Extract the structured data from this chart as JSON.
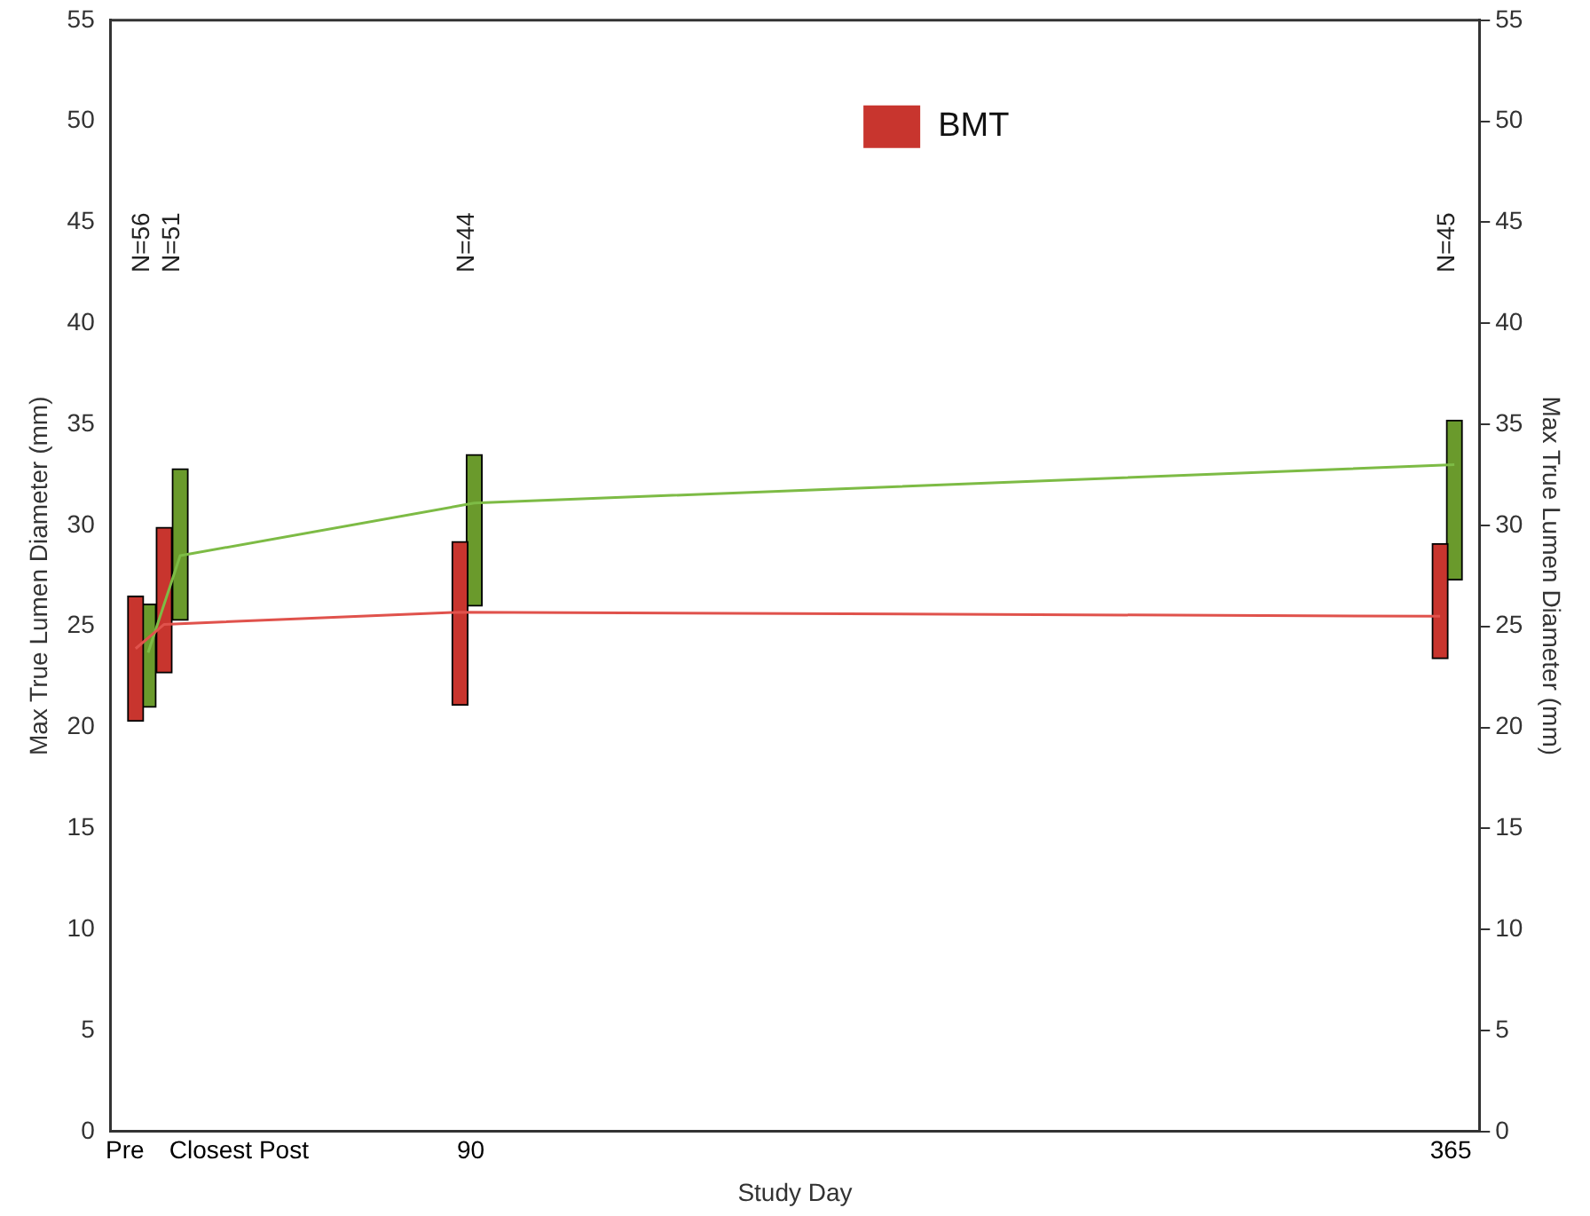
{
  "chart_data": {
    "type": "bar",
    "xlabel": "Study Day",
    "ylabel": "Max True Lumen Diameter (mm)",
    "y2label": "Max True Lumen Diameter (mm)",
    "xlim": [
      -11,
      373
    ],
    "xticks": [
      {
        "value": -7,
        "label": "Pre"
      },
      {
        "value": 25,
        "label": "Closest Post"
      },
      90,
      365
    ],
    "ylim": [
      0,
      55
    ],
    "yticks": [
      0,
      5,
      10,
      15,
      20,
      25,
      30,
      35,
      40,
      45,
      50,
      55
    ],
    "y2lim": [
      0,
      55
    ],
    "y2ticks": [
      0,
      5,
      10,
      15,
      20,
      25,
      30,
      35,
      40,
      45,
      50,
      55
    ],
    "grid": false,
    "legend": "top right",
    "marker": "none",
    "line_style": "solid",
    "series": [
      {
        "name": "BMT",
        "color": "#c8352e",
        "x": [
          -4,
          4,
          87,
          362
        ],
        "base": [
          20.3,
          22.7,
          21.1,
          23.4
        ],
        "values": [
          6.2,
          7.2,
          8.1,
          5.7
        ]
      },
      {
        "color": "#6a9a2c",
        "x": [
          -0.5,
          8.5,
          91,
          366
        ],
        "base": [
          21.0,
          25.3,
          26.0,
          27.3
        ],
        "values": [
          5.1,
          7.5,
          7.5,
          7.9
        ]
      },
      {
        "type": "line",
        "color": "#e0524c",
        "x": [
          -4,
          4,
          87,
          362
        ],
        "values": [
          23.9,
          25.1,
          25.7,
          25.5
        ]
      },
      {
        "type": "line",
        "color": "#7dbb45",
        "x": [
          -0.5,
          8.5,
          91,
          366
        ],
        "values": [
          23.7,
          28.5,
          31.1,
          33.0
        ]
      }
    ],
    "annotations": [
      "N=56",
      "N=51",
      "N=44",
      "N=45"
    ]
  }
}
